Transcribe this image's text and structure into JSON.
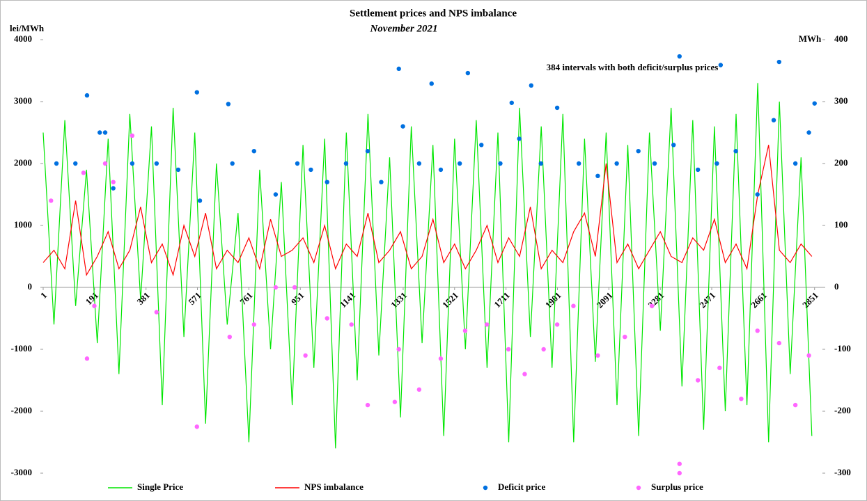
{
  "chart_data": {
    "type": "combo",
    "title": "Settlement prices and NPS imbalance",
    "subtitle": "November 2021",
    "y_label": "lei/MWh",
    "y2_label": "MWh",
    "annotation": "384 intervals with both deficit/surplus prices",
    "legend": "bottom",
    "xlim": [
      1,
      2880
    ],
    "xticks": [
      1,
      191,
      381,
      571,
      761,
      951,
      1141,
      1331,
      1521,
      1711,
      1901,
      2091,
      2281,
      2471,
      2661,
      2851
    ],
    "ylim": [
      -3000,
      4000
    ],
    "yticks": [
      -3000,
      -2000,
      -1000,
      0,
      1000,
      2000,
      3000,
      4000
    ],
    "y2lim": [
      -300,
      400
    ],
    "y2ticks": [
      -300,
      -200,
      -100,
      0,
      100,
      200,
      300,
      400
    ],
    "x": [
      1,
      41,
      81,
      121,
      161,
      201,
      241,
      281,
      321,
      361,
      401,
      441,
      481,
      521,
      561,
      601,
      641,
      681,
      721,
      761,
      801,
      841,
      881,
      921,
      961,
      1001,
      1041,
      1081,
      1121,
      1161,
      1201,
      1241,
      1281,
      1321,
      1361,
      1401,
      1441,
      1481,
      1521,
      1561,
      1601,
      1641,
      1681,
      1721,
      1761,
      1801,
      1841,
      1881,
      1921,
      1961,
      2001,
      2041,
      2081,
      2121,
      2161,
      2201,
      2241,
      2281,
      2321,
      2361,
      2401,
      2441,
      2481,
      2521,
      2561,
      2601,
      2641,
      2681,
      2721,
      2761,
      2801,
      2841
    ],
    "series": [
      {
        "name": "Single Price",
        "type": "line",
        "color": "#00e600",
        "values": [
          2500,
          -600,
          2700,
          -300,
          1900,
          -900,
          2400,
          -1400,
          2800,
          -200,
          2600,
          -1900,
          2900,
          -800,
          2500,
          -2200,
          2000,
          -600,
          1200,
          -2500,
          1900,
          -1000,
          1700,
          -1900,
          2300,
          -1300,
          2400,
          -2600,
          2500,
          -1500,
          2800,
          -1100,
          2100,
          -2100,
          2600,
          -900,
          2300,
          -2400,
          2400,
          -1000,
          2700,
          -1300,
          2500,
          -2500,
          2900,
          -800,
          2600,
          -1300,
          2800,
          -2500,
          2400,
          -1200,
          2500,
          -1900,
          2300,
          -2400,
          2500,
          -700,
          2900,
          -1600,
          2700,
          -2300,
          2600,
          -2000,
          2800,
          -1900,
          3300,
          -2500,
          3000,
          -1400,
          2100,
          -2400
        ]
      },
      {
        "name": "NPS imbalance",
        "type": "line",
        "axis": "y2",
        "color": "#ff0000",
        "values": [
          40,
          60,
          30,
          140,
          20,
          50,
          90,
          30,
          60,
          130,
          40,
          70,
          20,
          100,
          50,
          120,
          30,
          60,
          40,
          80,
          30,
          110,
          50,
          60,
          80,
          40,
          100,
          30,
          70,
          50,
          120,
          40,
          60,
          90,
          30,
          50,
          110,
          40,
          70,
          30,
          60,
          100,
          40,
          80,
          50,
          130,
          30,
          60,
          40,
          90,
          120,
          50,
          200,
          40,
          70,
          30,
          60,
          90,
          50,
          40,
          80,
          60,
          110,
          40,
          70,
          30,
          150,
          230,
          60,
          40,
          70,
          50
        ]
      },
      {
        "name": "Deficit price",
        "type": "scatter",
        "color": "#0070e0",
        "x": [
          163,
          569,
          685,
          1315,
          1436,
          1570,
          1732,
          1804,
          2352,
          2504,
          2720,
          2851,
          50,
          120,
          210,
          230,
          260,
          330,
          420,
          500,
          580,
          700,
          780,
          860,
          940,
          990,
          1050,
          1120,
          1200,
          1250,
          1330,
          1390,
          1470,
          1540,
          1620,
          1690,
          1760,
          1840,
          1900,
          1980,
          2050,
          2120,
          2200,
          2260,
          2330,
          2420,
          2490,
          2560,
          2640,
          2700,
          2780,
          2830
        ],
        "values": [
          3100,
          3150,
          2960,
          3530,
          3290,
          3460,
          2980,
          3260,
          3730,
          3590,
          3640,
          2970,
          2000,
          2000,
          2500,
          2500,
          1600,
          2000,
          2000,
          1900,
          1400,
          2000,
          2200,
          1500,
          2000,
          1900,
          1700,
          2000,
          2200,
          1700,
          2600,
          2000,
          1900,
          2000,
          2300,
          2000,
          2400,
          2000,
          2900,
          2000,
          1800,
          2000,
          2200,
          2000,
          2300,
          1900,
          2000,
          2200,
          1500,
          2700,
          2000,
          2500
        ]
      },
      {
        "name": "Surplus price",
        "type": "scatter",
        "color": "#ff66ff",
        "x": [
          30,
          150,
          163,
          190,
          230,
          260,
          330,
          420,
          569,
          690,
          780,
          860,
          930,
          970,
          1050,
          1140,
          1200,
          1300,
          1315,
          1390,
          1470,
          1560,
          1640,
          1720,
          1780,
          1850,
          1900,
          1960,
          2050,
          2150,
          2250,
          2352,
          2352,
          2420,
          2500,
          2580,
          2640,
          2720,
          2780,
          2830
        ],
        "values": [
          1400,
          1850,
          -1150,
          -300,
          2000,
          1700,
          2450,
          -400,
          -2250,
          -800,
          -600,
          0,
          0,
          -1100,
          -500,
          -600,
          -1900,
          -1850,
          -1000,
          -1650,
          -1150,
          -700,
          -600,
          -1000,
          -1400,
          -1000,
          -600,
          -300,
          -1100,
          -800,
          -300,
          -2850,
          -3000,
          -1500,
          -1300,
          -1800,
          -700,
          -900,
          -1900,
          -1100
        ]
      }
    ]
  }
}
